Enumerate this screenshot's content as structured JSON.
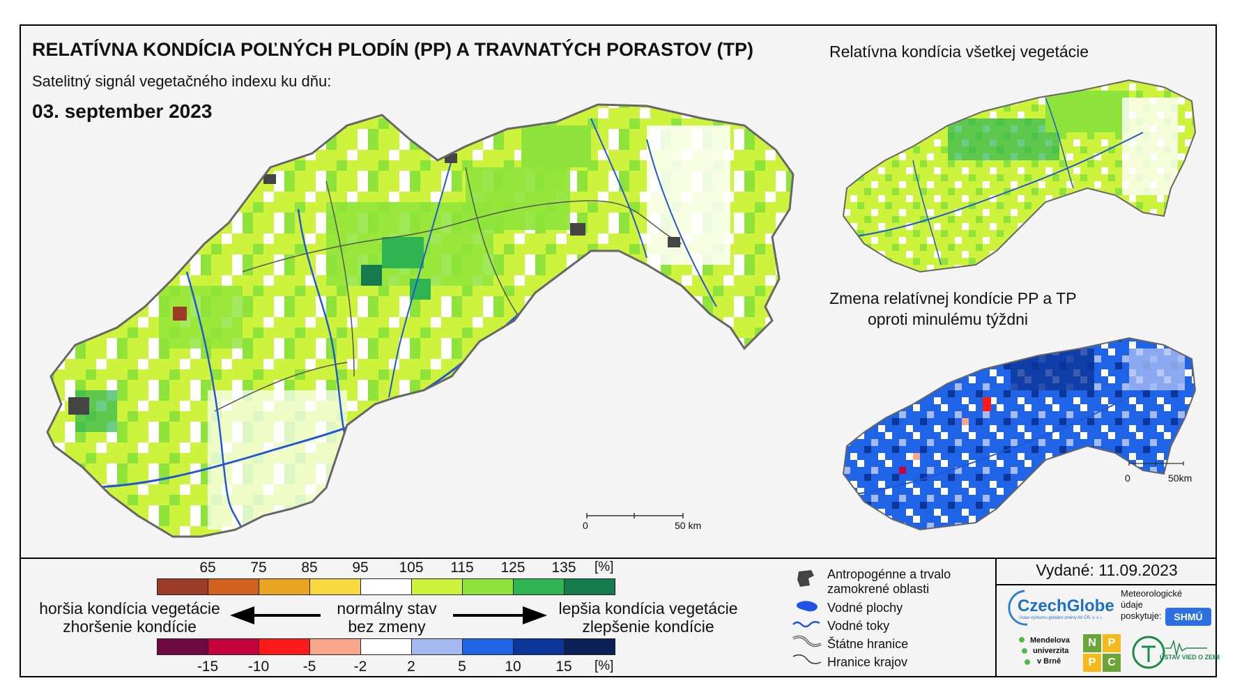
{
  "title": "RELATÍVNA KONDÍCIA POĽNÝCH PLODÍN (PP) A TRAVNATÝCH PORASTOV (TP)",
  "subtitle": "Satelitný signál vegetačného indexu ku dňu:",
  "date": "03. september 2023",
  "inset_top_title": "Relatívna kondícia všetkej vegetácie",
  "inset_bottom_title_1": "Zmena relatívnej kondície PP a TP",
  "inset_bottom_title_2": "oproti minulému týždni",
  "main_scale": {
    "start": "0",
    "end": "50 km"
  },
  "inset_scale": {
    "start": "0",
    "end": "50km"
  },
  "colors": {
    "condition": [
      "#9c3b26",
      "#d25f1d",
      "#e9a51f",
      "#f8d93e",
      "#ffffff",
      "#cdf33c",
      "#8ee43a",
      "#2eb552",
      "#157a4d"
    ],
    "change": [
      "#6e0a3f",
      "#c5003d",
      "#fe1a1a",
      "#f8a78d",
      "#ffffff",
      "#a6baf2",
      "#1f63e6",
      "#0b3599",
      "#0c1f57"
    ],
    "river": "#2156d6",
    "border": "#666666"
  },
  "legend_condition": {
    "labels": [
      "65",
      "75",
      "85",
      "95",
      "105",
      "115",
      "125",
      "135"
    ],
    "unit": "[%]"
  },
  "legend_change": {
    "labels": [
      "-15",
      "-10",
      "-5",
      "-2",
      "2",
      "5",
      "10",
      "15"
    ],
    "unit": "[%]"
  },
  "worse_1": "horšia kondícia vegetácie",
  "worse_2": "zhoršenie kondície",
  "normal_1": "normálny stav",
  "normal_2": "bez zmeny",
  "better_1": "lepšia kondícia vegetácie",
  "better_2": "zlepšenie kondície",
  "map_legend": {
    "anthro_1": "Antropogénne a trvalo",
    "anthro_2": "zamokrené oblasti",
    "water_areas": "Vodné plochy",
    "rivers": "Vodné toky",
    "state_border": "Štátne hranice",
    "region_border": "Hranice krajov"
  },
  "issued": "Vydané: 11.09.2023",
  "logos": {
    "czechglobe": "CzechGlobe",
    "czechglobe_sub": "Ústav výzkumu globální změny AV ČR, v. v. i.",
    "meteo_1": "Meteorologické",
    "meteo_2": "údaje",
    "meteo_3": "poskytuje:",
    "shmu": "SHMÚ",
    "mendel_1": "Mendelova",
    "mendel_2": "univerzita",
    "mendel_3": "v Brně",
    "nppc": [
      "N",
      "P",
      "P",
      "C"
    ],
    "uvz": "ÚSTAV VIED O ZEMI"
  }
}
